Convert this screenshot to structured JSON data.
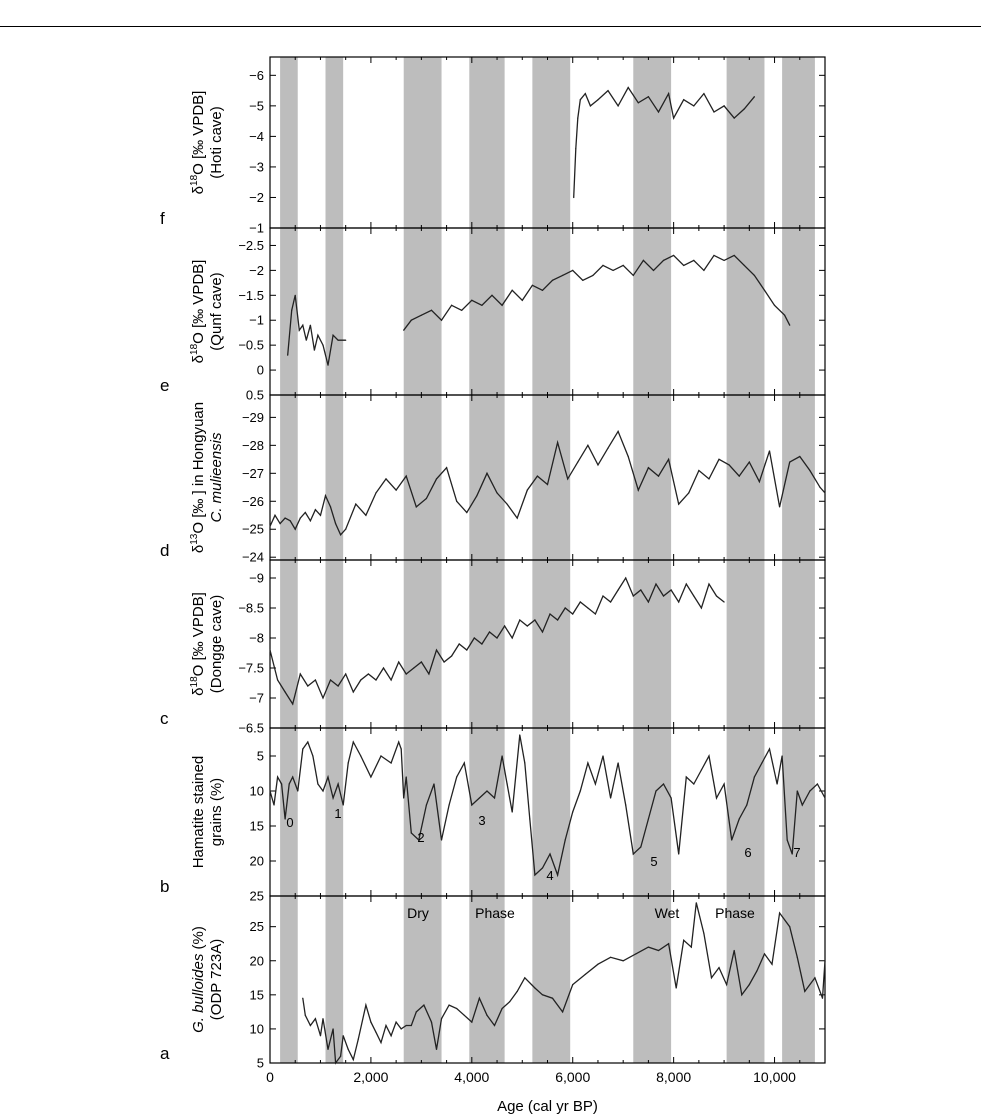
{
  "figure": {
    "x_axis": {
      "label": "Age (cal yr BP)",
      "range": [
        0,
        11000
      ],
      "ticks": [
        0,
        2000,
        4000,
        6000,
        8000,
        10000
      ],
      "tick_labels": [
        "0",
        "2,000",
        "4,000",
        "6,000",
        "8,000",
        "10,000"
      ]
    },
    "shaded_intervals": [
      [
        200,
        550
      ],
      [
        1100,
        1450
      ],
      [
        2650,
        3400
      ],
      [
        3950,
        4650
      ],
      [
        5200,
        5950
      ],
      [
        7200,
        7950
      ],
      [
        9050,
        9800
      ],
      [
        10150,
        10800
      ]
    ]
  },
  "chart_data": [
    {
      "type": "line",
      "panel_letter": "f",
      "ylabel_lines": [
        "δ18O [‰ VPDB]",
        "(Hoti cave)"
      ],
      "ylim": [
        -1,
        -6.6
      ],
      "yticks": [
        -1,
        -2,
        -3,
        -4,
        -5,
        -6
      ],
      "ytick_labels": [
        "−1",
        "−2",
        "−3",
        "−4",
        "−5",
        "−6"
      ],
      "series": [
        {
          "x": [
            6020,
            6060,
            6100,
            6150,
            6250,
            6350,
            6500,
            6700,
            6900,
            7100,
            7300,
            7500,
            7700,
            7900,
            8000,
            8200,
            8400,
            8600,
            8800,
            9000,
            9200,
            9400,
            9600
          ],
          "values": [
            -2.0,
            -3.6,
            -4.6,
            -5.2,
            -5.4,
            -5.0,
            -5.2,
            -5.5,
            -5.0,
            -5.6,
            -5.1,
            -5.3,
            -4.8,
            -5.4,
            -4.6,
            -5.2,
            -5.0,
            -5.4,
            -4.8,
            -5.0,
            -4.6,
            -4.9,
            -5.3
          ]
        }
      ],
      "grid": false
    },
    {
      "type": "line",
      "panel_letter": "e",
      "ylabel_lines": [
        "δ18O [‰ VPDB]",
        "(Qunf cave)"
      ],
      "ylim": [
        0.5,
        -2.85
      ],
      "yticks": [
        0.5,
        0,
        -0.5,
        -1,
        -1.5,
        -2,
        -2.5
      ],
      "ytick_labels": [
        "0.5",
        "0",
        "−0.5",
        "−1",
        "−1.5",
        "−2",
        "−2.5"
      ],
      "series": [
        {
          "x": [
            350,
            430,
            500,
            580,
            650,
            720,
            800,
            880,
            950,
            1050,
            1150,
            1250,
            1350,
            1500
          ],
          "values": [
            -0.3,
            -1.2,
            -1.5,
            -0.8,
            -0.9,
            -0.6,
            -0.9,
            -0.4,
            -0.7,
            -0.5,
            -0.1,
            -0.7,
            -0.6,
            -0.6
          ]
        },
        {
          "x": [
            2650,
            2800,
            3000,
            3200,
            3400,
            3600,
            3800,
            4000,
            4200,
            4400,
            4600,
            4800,
            5000,
            5200,
            5400,
            5600,
            5800,
            6000,
            6200,
            6400,
            6600,
            6800,
            7000,
            7200,
            7400,
            7600,
            7800,
            8000,
            8200,
            8400,
            8600,
            8800,
            9000,
            9200,
            9400,
            9600,
            9800,
            10000,
            10200,
            10300
          ],
          "values": [
            -0.8,
            -1.0,
            -1.1,
            -1.2,
            -1.0,
            -1.3,
            -1.2,
            -1.4,
            -1.3,
            -1.5,
            -1.3,
            -1.6,
            -1.4,
            -1.7,
            -1.6,
            -1.8,
            -1.9,
            -2.0,
            -1.8,
            -1.9,
            -2.1,
            -2.0,
            -2.1,
            -1.9,
            -2.2,
            -2.0,
            -2.2,
            -2.3,
            -2.1,
            -2.2,
            -2.0,
            -2.3,
            -2.2,
            -2.3,
            -2.1,
            -1.9,
            -1.6,
            -1.3,
            -1.1,
            -0.9
          ]
        }
      ],
      "grid": false
    },
    {
      "type": "line",
      "panel_letter": "d",
      "ylabel_lines": [
        "δ13O [‰ ] in Hongyuan",
        "C. mulieensis"
      ],
      "ylim": [
        -23.9,
        -29.8
      ],
      "yticks": [
        -24,
        -25,
        -26,
        -27,
        -28,
        -29
      ],
      "ytick_labels": [
        "−24",
        "−25",
        "−26",
        "−27",
        "−28",
        "−29"
      ],
      "series": [
        {
          "x": [
            0,
            100,
            200,
            300,
            400,
            500,
            600,
            700,
            800,
            900,
            1000,
            1100,
            1200,
            1300,
            1400,
            1500,
            1700,
            1900,
            2100,
            2300,
            2500,
            2700,
            2900,
            3100,
            3300,
            3500,
            3700,
            3900,
            4100,
            4300,
            4500,
            4700,
            4900,
            5100,
            5300,
            5500,
            5700,
            5900,
            6100,
            6300,
            6500,
            6700,
            6900,
            7100,
            7300,
            7500,
            7700,
            7900,
            8100,
            8300,
            8500,
            8700,
            8900,
            9100,
            9300,
            9500,
            9700,
            9900,
            10100,
            10300,
            10500,
            10700,
            10900,
            11000
          ],
          "values": [
            -25.1,
            -25.5,
            -25.2,
            -25.4,
            -25.3,
            -25.0,
            -25.4,
            -25.6,
            -25.3,
            -25.7,
            -25.5,
            -26.2,
            -25.8,
            -25.2,
            -24.8,
            -25.0,
            -25.9,
            -25.5,
            -26.3,
            -26.8,
            -26.4,
            -26.9,
            -25.8,
            -26.1,
            -26.8,
            -27.2,
            -26.0,
            -25.6,
            -26.2,
            -27.0,
            -26.3,
            -25.9,
            -25.4,
            -26.4,
            -26.9,
            -26.6,
            -28.1,
            -26.8,
            -27.4,
            -28.0,
            -27.3,
            -27.9,
            -28.5,
            -27.6,
            -26.4,
            -27.2,
            -26.9,
            -27.5,
            -25.9,
            -26.3,
            -27.1,
            -26.8,
            -27.5,
            -27.3,
            -26.9,
            -27.4,
            -26.7,
            -27.8,
            -25.8,
            -27.4,
            -27.6,
            -27.1,
            -26.5,
            -26.3
          ]
        }
      ],
      "grid": false
    },
    {
      "type": "line",
      "panel_letter": "c",
      "ylabel_lines": [
        "δ18O [‰ VPDB]",
        "(Dongge cave)"
      ],
      "ylim": [
        -6.5,
        -9.3
      ],
      "yticks": [
        -6.5,
        -7,
        -7.5,
        -8,
        -8.5,
        -9
      ],
      "ytick_labels": [
        "−6.5",
        "−7",
        "−7.5",
        "−8",
        "−8.5",
        "−9"
      ],
      "series": [
        {
          "x": [
            0,
            150,
            300,
            450,
            600,
            750,
            900,
            1050,
            1200,
            1350,
            1500,
            1650,
            1800,
            1950,
            2100,
            2250,
            2400,
            2550,
            2700,
            2850,
            3000,
            3150,
            3300,
            3450,
            3600,
            3750,
            3900,
            4050,
            4200,
            4350,
            4500,
            4650,
            4800,
            4950,
            5100,
            5250,
            5400,
            5550,
            5700,
            5850,
            6000,
            6150,
            6300,
            6450,
            6600,
            6750,
            6900,
            7050,
            7200,
            7350,
            7500,
            7650,
            7800,
            7950,
            8100,
            8250,
            8400,
            8550,
            8700,
            8850,
            9000
          ],
          "values": [
            -7.8,
            -7.3,
            -7.1,
            -6.9,
            -7.4,
            -7.2,
            -7.3,
            -7.0,
            -7.3,
            -7.2,
            -7.4,
            -7.1,
            -7.3,
            -7.4,
            -7.3,
            -7.5,
            -7.3,
            -7.6,
            -7.4,
            -7.5,
            -7.6,
            -7.4,
            -7.8,
            -7.6,
            -7.7,
            -7.9,
            -7.8,
            -8.0,
            -7.9,
            -8.1,
            -8.0,
            -8.2,
            -8.0,
            -8.3,
            -8.2,
            -8.3,
            -8.1,
            -8.4,
            -8.3,
            -8.5,
            -8.4,
            -8.6,
            -8.5,
            -8.4,
            -8.7,
            -8.6,
            -8.8,
            -9.0,
            -8.7,
            -8.8,
            -8.6,
            -8.9,
            -8.7,
            -8.8,
            -8.6,
            -8.9,
            -8.7,
            -8.5,
            -8.9,
            -8.7,
            -8.6
          ]
        }
      ],
      "grid": false
    },
    {
      "type": "line",
      "panel_letter": "b",
      "ylabel_lines": [
        "Hamatite stained",
        "grains (%)"
      ],
      "ylim": [
        25,
        1
      ],
      "yticks": [
        5,
        10,
        15,
        20,
        25
      ],
      "ytick_labels": [
        "5",
        "10",
        "15",
        "20",
        "25"
      ],
      "series": [
        {
          "x": [
            0,
            80,
            150,
            230,
            300,
            380,
            450,
            550,
            650,
            750,
            850,
            950,
            1050,
            1150,
            1250,
            1350,
            1450,
            1550,
            1650,
            1800,
            2000,
            2200,
            2400,
            2550,
            2600,
            2650,
            2700,
            2800,
            2950,
            3100,
            3250,
            3400,
            3550,
            3700,
            3850,
            4000,
            4150,
            4300,
            4450,
            4600,
            4700,
            4800,
            4950,
            5050,
            5150,
            5250,
            5400,
            5550,
            5700,
            5850,
            6000,
            6150,
            6300,
            6450,
            6600,
            6750,
            6900,
            7050,
            7200,
            7350,
            7500,
            7650,
            7800,
            7950,
            8100,
            8250,
            8400,
            8550,
            8700,
            8850,
            9000,
            9150,
            9300,
            9450,
            9600,
            9750,
            9900,
            10050,
            10150,
            10250,
            10350,
            10450,
            10550,
            10700,
            10850,
            11000
          ],
          "values": [
            10,
            12,
            8,
            9,
            14,
            9,
            8,
            10,
            4,
            3,
            5,
            9,
            10,
            8,
            11,
            9,
            12,
            6,
            3,
            5,
            8,
            5,
            6,
            3,
            4,
            11,
            8,
            16,
            17,
            12,
            9,
            17,
            12,
            8,
            6,
            12,
            11,
            10,
            11,
            5,
            9,
            13,
            2,
            6,
            14,
            22,
            21,
            19,
            22,
            17,
            13,
            10,
            6,
            9,
            5,
            11,
            6,
            12,
            19,
            18,
            14,
            10,
            9,
            11,
            19,
            8,
            9,
            7,
            5,
            11,
            9,
            17,
            14,
            12,
            8,
            6,
            4,
            9,
            5,
            17,
            19,
            10,
            12,
            10,
            9,
            11
          ]
        }
      ],
      "annotations": [
        "0",
        "1",
        "2",
        "3",
        "4",
        "5",
        "6",
        "7"
      ],
      "grid": false
    },
    {
      "type": "line",
      "panel_letter": "a",
      "ylabel_lines": [
        "G. bulloides (%)",
        "(ODP 723A)"
      ],
      "ylim": [
        5,
        29.5
      ],
      "yticks": [
        5,
        10,
        15,
        20,
        25
      ],
      "ytick_labels": [
        "5",
        "10",
        "15",
        "20",
        "25"
      ],
      "series": [
        {
          "x": [
            650,
            700,
            800,
            900,
            1000,
            1050,
            1150,
            1250,
            1300,
            1400,
            1450,
            1550,
            1650,
            1750,
            1900,
            2000,
            2100,
            2200,
            2300,
            2400,
            2500,
            2600,
            2700,
            2800,
            2900,
            3050,
            3200,
            3300,
            3400,
            3550,
            3700,
            3850,
            4000,
            4150,
            4300,
            4450,
            4600,
            4750,
            4900,
            5050,
            5250,
            5400,
            5600,
            5800,
            6000,
            6250,
            6500,
            6750,
            7000,
            7250,
            7500,
            7700,
            7900,
            8050,
            8200,
            8350,
            8450,
            8600,
            8750,
            8900,
            9050,
            9200,
            9350,
            9500,
            9650,
            9800,
            9950,
            10100,
            10300,
            10450,
            10600,
            10800,
            10950,
            11000
          ],
          "values": [
            14.5,
            12,
            10.5,
            11.5,
            9,
            11.5,
            7,
            10,
            5,
            6,
            9,
            7,
            5.5,
            8.5,
            13.5,
            11,
            9.5,
            8,
            10.5,
            9,
            11,
            10,
            10.5,
            10.5,
            12.5,
            13.5,
            11,
            7,
            11.5,
            13.5,
            13,
            12,
            11,
            14.5,
            12,
            10.5,
            13,
            14,
            15.5,
            17.5,
            16,
            15,
            14.5,
            12.5,
            16.5,
            18,
            19.5,
            20.5,
            20,
            21,
            22,
            21.5,
            22.5,
            16,
            23,
            22,
            28.5,
            24,
            17.5,
            19,
            16.5,
            21.5,
            15,
            16.5,
            18.5,
            21,
            19.5,
            27,
            25,
            20.5,
            15.5,
            17.5,
            14.5,
            20
          ]
        }
      ],
      "grid": false
    }
  ],
  "phase_labels": [
    "Dry",
    "Phase",
    "Wet",
    "Phase"
  ]
}
